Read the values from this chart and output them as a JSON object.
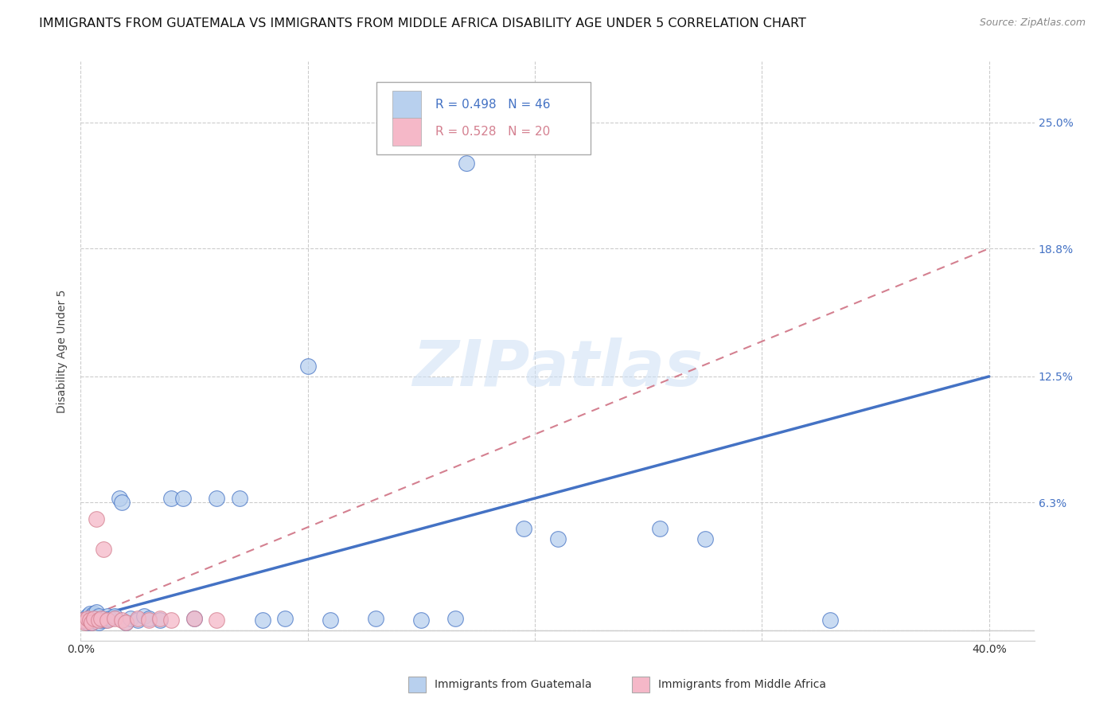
{
  "title": "IMMIGRANTS FROM GUATEMALA VS IMMIGRANTS FROM MIDDLE AFRICA DISABILITY AGE UNDER 5 CORRELATION CHART",
  "source": "Source: ZipAtlas.com",
  "ylabel": "Disability Age Under 5",
  "xlim": [
    0.0,
    0.42
  ],
  "ylim": [
    -0.005,
    0.28
  ],
  "xtick_positions": [
    0.0,
    0.1,
    0.2,
    0.3,
    0.4
  ],
  "xtick_labels": [
    "0.0%",
    "",
    "",
    "",
    "40.0%"
  ],
  "ytick_positions": [
    0.0,
    0.063,
    0.125,
    0.188,
    0.25
  ],
  "ytick_labels": [
    "",
    "6.3%",
    "12.5%",
    "18.8%",
    "25.0%"
  ],
  "grid_color": "#cccccc",
  "background_color": "#ffffff",
  "guatemala_color": "#b8d0ee",
  "middle_africa_color": "#f5b8c8",
  "guatemala_line_color": "#4472c4",
  "middle_africa_line_color": "#d48090",
  "legend_r1": "R = 0.498",
  "legend_n1": "N = 46",
  "legend_r2": "R = 0.528",
  "legend_n2": "N = 20",
  "guatemala_label": "Immigrants from Guatemala",
  "middle_africa_label": "Immigrants from Middle Africa",
  "watermark": "ZIPatlas",
  "title_fontsize": 11.5,
  "axis_label_fontsize": 10,
  "tick_fontsize": 10,
  "guatemala_x": [
    0.001,
    0.002,
    0.003,
    0.003,
    0.004,
    0.004,
    0.005,
    0.005,
    0.006,
    0.006,
    0.007,
    0.007,
    0.008,
    0.008,
    0.009,
    0.01,
    0.011,
    0.012,
    0.013,
    0.015,
    0.017,
    0.018,
    0.02,
    0.022,
    0.025,
    0.028,
    0.03,
    0.035,
    0.04,
    0.045,
    0.05,
    0.06,
    0.07,
    0.08,
    0.09,
    0.1,
    0.11,
    0.13,
    0.15,
    0.165,
    0.195,
    0.21,
    0.255,
    0.275,
    0.33,
    0.17
  ],
  "guatemala_y": [
    0.005,
    0.005,
    0.004,
    0.007,
    0.006,
    0.008,
    0.004,
    0.007,
    0.005,
    0.008,
    0.006,
    0.009,
    0.004,
    0.007,
    0.005,
    0.006,
    0.005,
    0.007,
    0.006,
    0.007,
    0.065,
    0.063,
    0.004,
    0.006,
    0.005,
    0.007,
    0.006,
    0.005,
    0.065,
    0.065,
    0.006,
    0.065,
    0.065,
    0.005,
    0.006,
    0.13,
    0.005,
    0.006,
    0.005,
    0.006,
    0.05,
    0.045,
    0.05,
    0.045,
    0.005,
    0.23
  ],
  "middle_africa_x": [
    0.001,
    0.002,
    0.003,
    0.004,
    0.005,
    0.006,
    0.007,
    0.008,
    0.009,
    0.01,
    0.012,
    0.015,
    0.018,
    0.02,
    0.025,
    0.03,
    0.035,
    0.04,
    0.05,
    0.06
  ],
  "middle_africa_y": [
    0.005,
    0.004,
    0.006,
    0.005,
    0.004,
    0.006,
    0.055,
    0.005,
    0.006,
    0.04,
    0.005,
    0.006,
    0.005,
    0.004,
    0.006,
    0.005,
    0.006,
    0.005,
    0.006,
    0.005
  ],
  "blue_line_x": [
    0.0,
    0.4
  ],
  "blue_line_y": [
    0.005,
    0.125
  ],
  "pink_line_x": [
    0.0,
    0.4
  ],
  "pink_line_y": [
    0.005,
    0.188
  ]
}
